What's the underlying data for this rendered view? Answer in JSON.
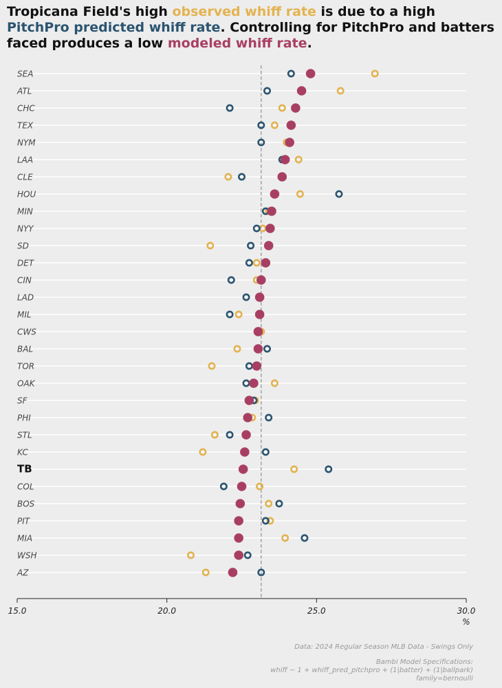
{
  "title": {
    "segments": [
      {
        "text": "Tropicana Field's high ",
        "color": "#111111"
      },
      {
        "text": "observed whiff rate",
        "color": "#e3b350"
      },
      {
        "text": " is due to a high ",
        "color": "#111111"
      },
      {
        "text": "PitchPro predicted whiff rate",
        "color": "#2b5470"
      },
      {
        "text": ". Controlling for PitchPro and batters faced produces a low ",
        "color": "#111111"
      },
      {
        "text": "modeled whiff rate",
        "color": "#a83f63"
      },
      {
        "text": ".",
        "color": "#111111"
      }
    ]
  },
  "colors": {
    "observed": "#e3b350",
    "predicted": "#2b5470",
    "modeled": "#a83f63",
    "reference_line": "#999999",
    "grid": "#ffffff"
  },
  "chart_data": {
    "type": "scatter",
    "xlim": [
      15.0,
      30.0
    ],
    "x_ticks": [
      "15.0",
      "20.0",
      "25.0",
      "30.0"
    ],
    "x_unit": "%",
    "reference_line": 23.15,
    "highlight_team": "TB",
    "categories": [
      "SEA",
      "ATL",
      "CHC",
      "TEX",
      "NYM",
      "LAA",
      "CLE",
      "HOU",
      "MIN",
      "NYY",
      "SD",
      "DET",
      "CIN",
      "LAD",
      "MIL",
      "CWS",
      "BAL",
      "TOR",
      "OAK",
      "SF",
      "PHI",
      "STL",
      "KC",
      "TB",
      "COL",
      "BOS",
      "PIT",
      "MIA",
      "WSH",
      "AZ"
    ],
    "series": [
      {
        "key": "observed",
        "values": [
          26.95,
          25.8,
          23.85,
          23.6,
          24.0,
          24.4,
          22.05,
          24.45,
          23.4,
          23.2,
          21.45,
          23.0,
          23.0,
          23.1,
          22.4,
          23.15,
          22.35,
          21.5,
          23.6,
          22.95,
          22.85,
          21.6,
          21.2,
          24.25,
          23.1,
          23.4,
          23.45,
          23.95,
          20.8,
          21.3
        ]
      },
      {
        "key": "predicted",
        "values": [
          24.15,
          23.35,
          22.1,
          23.15,
          23.15,
          23.85,
          22.5,
          25.75,
          23.3,
          23.0,
          22.8,
          22.75,
          22.15,
          22.65,
          22.1,
          23.05,
          23.35,
          22.75,
          22.65,
          22.9,
          23.4,
          22.1,
          23.3,
          25.4,
          21.9,
          23.75,
          23.3,
          24.6,
          22.7,
          23.15
        ]
      },
      {
        "key": "modeled",
        "values": [
          24.8,
          24.5,
          24.3,
          24.15,
          24.1,
          23.95,
          23.85,
          23.6,
          23.5,
          23.45,
          23.4,
          23.3,
          23.15,
          23.1,
          23.1,
          23.05,
          23.05,
          23.0,
          22.9,
          22.75,
          22.7,
          22.65,
          22.6,
          22.55,
          22.5,
          22.45,
          22.4,
          22.4,
          22.4,
          22.2
        ]
      }
    ]
  },
  "footer": {
    "data_note": "Data: 2024 Regular Season MLB Data - Swings Only",
    "model_title": "Bambi Model Specifications:",
    "model_formula": "whiff ~ 1 + whiff_pred_pitchpro + (1|batter) + (1|ballpark)",
    "model_family": "family=bernoulli"
  }
}
